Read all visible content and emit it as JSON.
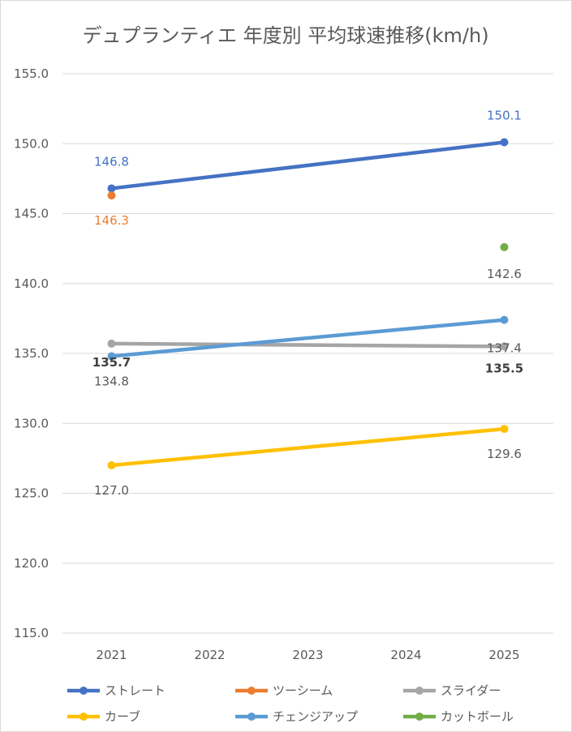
{
  "chart_data": {
    "type": "line",
    "title": "デュプランティエ 年度別 平均球速推移(km/h)",
    "xlabel": "",
    "ylabel": "",
    "categories": [
      "2021",
      "2022",
      "2023",
      "2024",
      "2025"
    ],
    "ylim": [
      115,
      155
    ],
    "y_ticks": [
      "115.0",
      "120.0",
      "125.0",
      "130.0",
      "135.0",
      "140.0",
      "145.0",
      "150.0",
      "155.0"
    ],
    "grid": true,
    "legend_position": "bottom",
    "series": [
      {
        "name": "ストレート",
        "color": "#4472C4",
        "values": [
          146.8,
          null,
          null,
          null,
          150.1
        ],
        "labels": [
          "146.8",
          null,
          null,
          null,
          "150.1"
        ],
        "label_color": "#4472C4"
      },
      {
        "name": "ツーシーム",
        "color": "#ED7D31",
        "values": [
          146.3,
          null,
          null,
          null,
          null
        ],
        "labels": [
          "146.3",
          null,
          null,
          null,
          null
        ],
        "label_color": "#ED7D31"
      },
      {
        "name": "スライダー",
        "color": "#A5A5A5",
        "values": [
          135.7,
          null,
          null,
          null,
          135.5
        ],
        "labels": [
          "135.7",
          null,
          null,
          null,
          "135.5"
        ],
        "label_color": "#404040"
      },
      {
        "name": "カーブ",
        "color": "#FFC000",
        "values": [
          127.0,
          null,
          null,
          null,
          129.6
        ],
        "labels": [
          "127.0",
          null,
          null,
          null,
          "129.6"
        ],
        "label_color": "#595959"
      },
      {
        "name": "チェンジアップ",
        "color": "#5B9BD5",
        "values": [
          134.8,
          null,
          null,
          null,
          137.4
        ],
        "labels": [
          "134.8",
          null,
          null,
          null,
          "137.4"
        ],
        "label_color": "#595959"
      },
      {
        "name": "カットボール",
        "color": "#70AD47",
        "values": [
          null,
          null,
          null,
          null,
          142.6
        ],
        "labels": [
          null,
          null,
          null,
          null,
          "142.6"
        ],
        "label_color": "#595959"
      }
    ]
  }
}
